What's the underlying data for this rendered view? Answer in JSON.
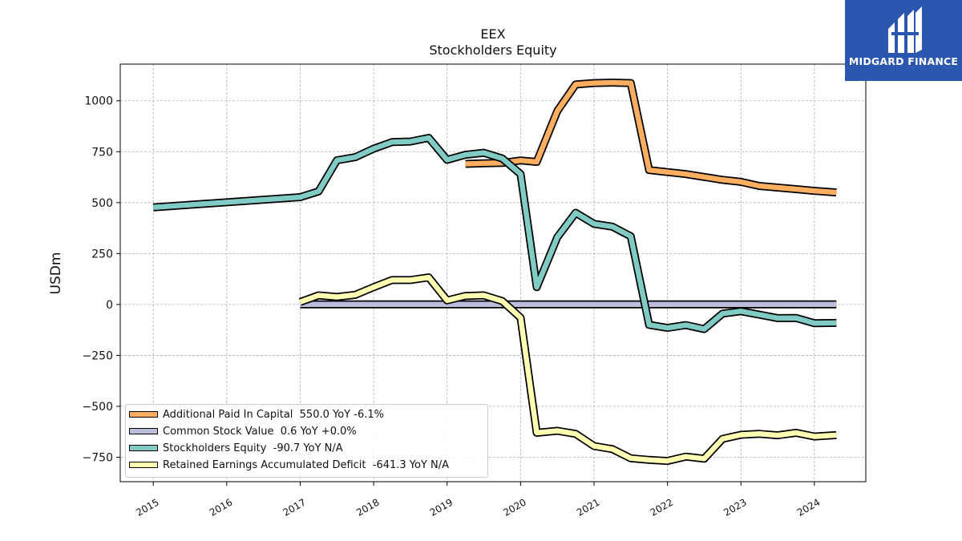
{
  "chart_data": {
    "type": "line",
    "title": "EEX",
    "subtitle": "Stockholders  Equity",
    "xlabel": "",
    "ylabel": "USDm",
    "xlim": [
      2014.55,
      2024.7
    ],
    "ylim": [
      -870,
      1180
    ],
    "x_ticks": [
      2015,
      2016,
      2017,
      2018,
      2019,
      2020,
      2021,
      2022,
      2023,
      2024
    ],
    "x_tick_labels": [
      "2015",
      "2016",
      "2017",
      "2018",
      "2019",
      "2020",
      "2021",
      "2022",
      "2023",
      "2024"
    ],
    "y_ticks": [
      -750,
      -500,
      -250,
      0,
      250,
      500,
      750,
      1000
    ],
    "y_tick_labels": [
      "−750",
      "−500",
      "−250",
      "0",
      "250",
      "500",
      "750",
      "1000"
    ],
    "grid": true,
    "legend_position": "lower-left",
    "series": [
      {
        "name": "Additional Paid In Capital",
        "legend_label": "Additional Paid In Capital  550.0 YoY -6.1%",
        "color": "#fdae61",
        "points": [
          [
            2019.25,
            690
          ],
          [
            2019.5,
            693
          ],
          [
            2019.75,
            695
          ],
          [
            2020.0,
            707
          ],
          [
            2020.22,
            700
          ],
          [
            2020.5,
            950
          ],
          [
            2020.75,
            1080
          ],
          [
            2021.0,
            1087
          ],
          [
            2021.25,
            1089
          ],
          [
            2021.5,
            1087
          ],
          [
            2021.75,
            660
          ],
          [
            2022.0,
            650
          ],
          [
            2022.25,
            640
          ],
          [
            2022.5,
            626
          ],
          [
            2022.75,
            612
          ],
          [
            2023.0,
            602
          ],
          [
            2023.25,
            582
          ],
          [
            2023.5,
            574
          ],
          [
            2023.75,
            566
          ],
          [
            2024.0,
            558
          ],
          [
            2024.3,
            550
          ]
        ]
      },
      {
        "name": "Common Stock Value",
        "legend_label": "Common Stock Value  0.6 YoY +0.0%",
        "color": "#bcbddc",
        "points": [
          [
            2017.0,
            0.6
          ],
          [
            2024.3,
            0.6
          ]
        ]
      },
      {
        "name": "Stockholders Equity",
        "legend_label": "Stockholders Equity  -90.7 YoY N/A",
        "color": "#80cbc4",
        "points": [
          [
            2015.0,
            477
          ],
          [
            2017.0,
            527
          ],
          [
            2017.25,
            555
          ],
          [
            2017.5,
            708
          ],
          [
            2017.75,
            723
          ],
          [
            2018.0,
            765
          ],
          [
            2018.25,
            797
          ],
          [
            2018.5,
            800
          ],
          [
            2018.75,
            818
          ],
          [
            2019.0,
            710
          ],
          [
            2019.25,
            735
          ],
          [
            2019.5,
            745
          ],
          [
            2019.75,
            717
          ],
          [
            2020.0,
            640
          ],
          [
            2020.22,
            85
          ],
          [
            2020.5,
            330
          ],
          [
            2020.75,
            450
          ],
          [
            2021.0,
            396
          ],
          [
            2021.25,
            382
          ],
          [
            2021.5,
            335
          ],
          [
            2021.75,
            -100
          ],
          [
            2022.0,
            -115
          ],
          [
            2022.25,
            -101
          ],
          [
            2022.5,
            -121
          ],
          [
            2022.75,
            -45
          ],
          [
            2023.0,
            -33
          ],
          [
            2023.25,
            -50
          ],
          [
            2023.5,
            -67
          ],
          [
            2023.75,
            -66
          ],
          [
            2024.0,
            -92
          ],
          [
            2024.3,
            -90.7
          ]
        ]
      },
      {
        "name": "Retained Earnings Accumulated Deficit",
        "legend_label": "Retained Earnings Accumulated Deficit  -641.3 YoY N/A",
        "color": "#ffffb3",
        "points": [
          [
            2017.0,
            12
          ],
          [
            2017.25,
            45
          ],
          [
            2017.5,
            37
          ],
          [
            2017.75,
            47
          ],
          [
            2018.0,
            85
          ],
          [
            2018.25,
            120
          ],
          [
            2018.5,
            120
          ],
          [
            2018.75,
            133
          ],
          [
            2019.0,
            20
          ],
          [
            2019.25,
            42
          ],
          [
            2019.5,
            45
          ],
          [
            2019.75,
            17
          ],
          [
            2020.0,
            -65
          ],
          [
            2020.22,
            -630
          ],
          [
            2020.5,
            -620
          ],
          [
            2020.75,
            -635
          ],
          [
            2021.0,
            -695
          ],
          [
            2021.25,
            -710
          ],
          [
            2021.5,
            -755
          ],
          [
            2021.75,
            -763
          ],
          [
            2022.0,
            -768
          ],
          [
            2022.25,
            -747
          ],
          [
            2022.5,
            -757
          ],
          [
            2022.75,
            -660
          ],
          [
            2023.0,
            -640
          ],
          [
            2023.25,
            -635
          ],
          [
            2023.5,
            -642
          ],
          [
            2023.75,
            -630
          ],
          [
            2024.0,
            -648
          ],
          [
            2024.3,
            -641.3
          ]
        ]
      }
    ]
  },
  "logo": {
    "text": "MIDGARD FINANCE",
    "background": "#2b57b0"
  }
}
